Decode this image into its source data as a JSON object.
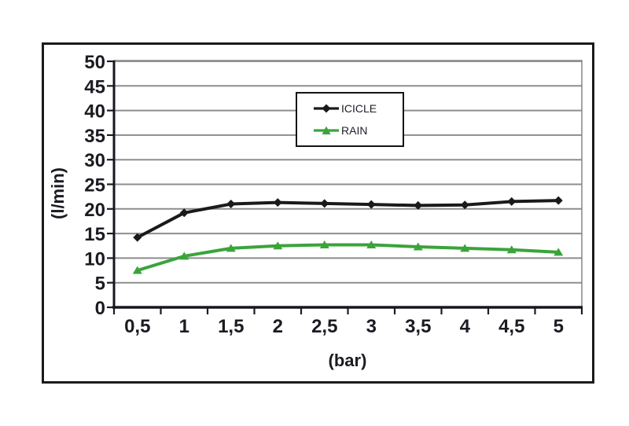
{
  "chart_data": {
    "type": "line",
    "title": "",
    "xlabel": "(bar)",
    "ylabel": "(l/min)",
    "categories": [
      "0,5",
      "1",
      "1,5",
      "2",
      "2,5",
      "3",
      "3,5",
      "4",
      "4,5",
      "5"
    ],
    "x_values": [
      0.5,
      1,
      1.5,
      2,
      2.5,
      3,
      3.5,
      4,
      4.5,
      5
    ],
    "ylim": [
      0,
      50
    ],
    "ytick_step": 5,
    "ytick_labels": [
      "0",
      "5",
      "10",
      "15",
      "20",
      "25",
      "30",
      "35",
      "40",
      "45",
      "50"
    ],
    "grid": true,
    "legend_position": "upper-center",
    "series": [
      {
        "name": "ICICLE",
        "color": "#1a1a1a",
        "marker": "diamond",
        "values": [
          14.2,
          19.2,
          21.0,
          21.3,
          21.1,
          20.9,
          20.7,
          20.8,
          21.5,
          21.7
        ]
      },
      {
        "name": "RAIN",
        "color": "#3aa43a",
        "marker": "triangle",
        "values": [
          7.5,
          10.4,
          12.0,
          12.5,
          12.7,
          12.7,
          12.3,
          12.0,
          11.7,
          11.2
        ]
      }
    ]
  }
}
